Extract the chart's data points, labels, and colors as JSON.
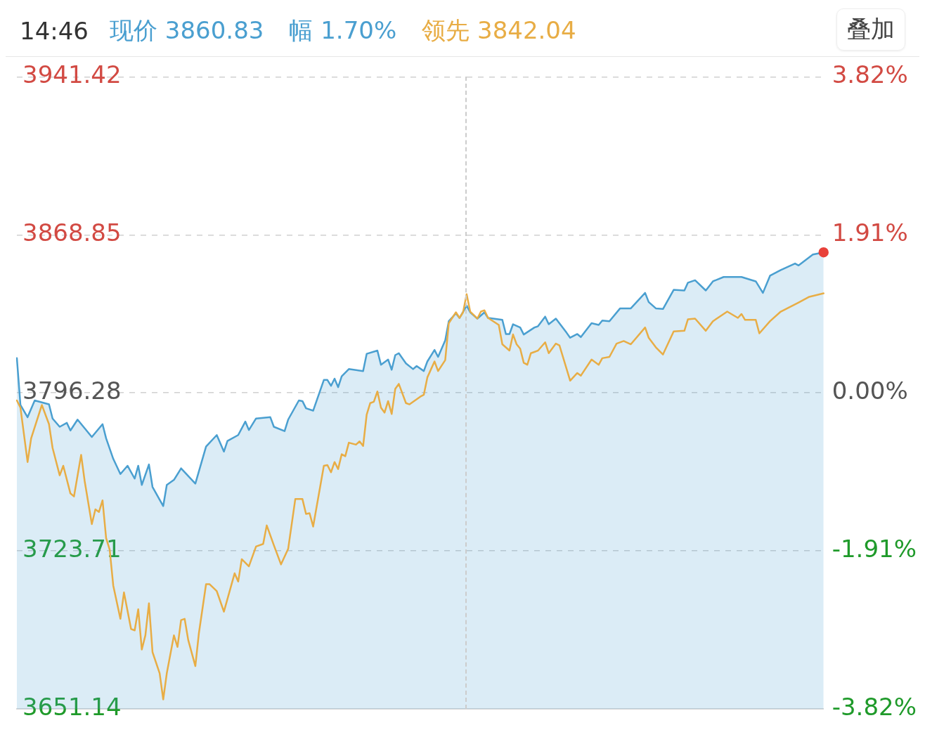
{
  "chart_data": {
    "type": "line",
    "title": "14:46",
    "annotations": [
      "现价 3860.83",
      "幅 1.70%",
      "领先 3842.04",
      "叠加"
    ],
    "categories": [
      null,
      null,
      null,
      null,
      null,
      null,
      null,
      null,
      null,
      null,
      null,
      null,
      null,
      null,
      null,
      null,
      null,
      null,
      null,
      null,
      null,
      null,
      null,
      null,
      null,
      null,
      null,
      null,
      null,
      null,
      null,
      null,
      null,
      null,
      null,
      null,
      null,
      null,
      null,
      null,
      null,
      null,
      null,
      null,
      null,
      null,
      null,
      null,
      null,
      null,
      null,
      null,
      null,
      null,
      null,
      null,
      null,
      null,
      null,
      null,
      null,
      null,
      null,
      null,
      null,
      null,
      null,
      null,
      null,
      null,
      null,
      null,
      null,
      null,
      null,
      null,
      null,
      null,
      null,
      null,
      null,
      null,
      null,
      null,
      null,
      null,
      null,
      null,
      null,
      null,
      null,
      null,
      null,
      null,
      null,
      null,
      null,
      null,
      null,
      null,
      null,
      null,
      null,
      null,
      null,
      null,
      null,
      null,
      null,
      null,
      null,
      null,
      null,
      null,
      null,
      null,
      null,
      null,
      null,
      null,
      null,
      null,
      null,
      null,
      null,
      null,
      null,
      null,
      null,
      null,
      null,
      null,
      null,
      null,
      null,
      null,
      null,
      null,
      null,
      null,
      null,
      null,
      null,
      null,
      null,
      null,
      null,
      null,
      null,
      null,
      null,
      null,
      null,
      null,
      null,
      null,
      null,
      null,
      null,
      null,
      null,
      null,
      null,
      null,
      null,
      null,
      null,
      null,
      null,
      null,
      null,
      null,
      null,
      null,
      null,
      null,
      null,
      null,
      null,
      null,
      null,
      null,
      null,
      null,
      null,
      null,
      null,
      null,
      null,
      null,
      null,
      null,
      null,
      null,
      null,
      null,
      null,
      null,
      null,
      null,
      null,
      null,
      null,
      null,
      null,
      null,
      null,
      null,
      null,
      null,
      null,
      null,
      null,
      null,
      null,
      null,
      null,
      null,
      null,
      null,
      null,
      null,
      null,
      null,
      null,
      null,
      null
    ],
    "ylim": [
      3651.14,
      3941.42
    ],
    "yticks": [
      3651.14,
      3723.71,
      3796.28,
      3868.85,
      3941.42
    ],
    "y2lim": [
      -3.82,
      3.82
    ],
    "y2ticks": [
      {
        "value": -3.82,
        "label": "-3.82%"
      },
      {
        "value": -1.91,
        "label": "-1.91%"
      },
      {
        "value": 0,
        "label": "0.00%"
      },
      {
        "value": 1.91,
        "label": "1.91%"
      },
      {
        "value": 3.82,
        "label": "3.82%"
      }
    ],
    "tick_labels": "y",
    "grid": "y",
    "marker": "none",
    "series": [
      {
        "type": "area",
        "color": "#4a9fd0",
        "values": [
          3812.2,
          3790.7,
          null,
          3785.1,
          null,
          3792.8,
          null,
          null,
          null,
          3791.0,
          3784.5,
          null,
          3780.7,
          null,
          3782.5,
          3779.0,
          null,
          3784.0,
          null,
          null,
          null,
          3776.0,
          null,
          null,
          3781.9,
          3775.4,
          null,
          3766.0,
          null,
          3759.0,
          null,
          3762.8,
          null,
          3756.9,
          3762.8,
          3754.0,
          null,
          3763.4,
          3753.1,
          null,
          null,
          3744.3,
          3754.0,
          null,
          3756.3,
          null,
          3761.6,
          null,
          null,
          null,
          3754.6,
          null,
          null,
          3771.6,
          null,
          null,
          3776.9,
          null,
          3769.3,
          3774.2,
          null,
          null,
          3776.9,
          null,
          3783.1,
          3779.2,
          null,
          3784.5,
          null,
          null,
          null,
          3785.1,
          3780.7,
          null,
          null,
          3778.7,
          3784.0,
          null,
          null,
          3792.8,
          3792.5,
          3789.2,
          null,
          3788.1,
          null,
          null,
          3802.2,
          3802.2,
          3799.5,
          3802.8,
          3798.9,
          3803.9,
          null,
          3807.2,
          null,
          null,
          null,
          3806.3,
          3814.2,
          null,
          null,
          3815.7,
          3809.2,
          null,
          3811.6,
          3806.9,
          3813.6,
          3814.5,
          null,
          3809.8,
          null,
          3807.2,
          3808.6,
          null,
          3806.3,
          3810.7,
          null,
          3816.0,
          3812.8,
          null,
          3820.4,
          3829.2,
          null,
          3832.8,
          3830.7,
          null,
          3836.3,
          3833.3,
          null,
          3830.4,
          null,
          3833.3,
          3830.7,
          null,
          null,
          null,
          3829.8,
          3823.3,
          3823.3,
          3827.8,
          null,
          3826.3,
          3823.1,
          null,
          null,
          3826.3,
          3826.9,
          null,
          3831.3,
          3827.8,
          null,
          3830.4,
          null,
          null,
          3823.9,
          3821.6,
          null,
          3823.3,
          3821.9,
          null,
          null,
          3828.3,
          null,
          3827.5,
          3829.5,
          null,
          3829.2,
          null,
          null,
          3835.1,
          null,
          null,
          3835.1,
          null,
          null,
          null,
          3842.2,
          3838.0,
          null,
          3835.1,
          null,
          3834.8,
          null,
          null,
          3843.6,
          null,
          null,
          3843.3,
          3846.9,
          null,
          3848.0,
          null,
          null,
          3843.3,
          null,
          3847.5,
          null,
          null,
          3849.5,
          null,
          null,
          null,
          null,
          3849.5,
          null,
          null,
          null,
          3847.5,
          null,
          3842.2,
          null,
          3850.1,
          null,
          null,
          3852.7,
          null,
          null,
          null,
          3855.7,
          3854.8,
          null,
          null,
          null,
          3859.8,
          null,
          null,
          3860.8
        ]
      },
      {
        "type": "line",
        "color": "#e8ad45",
        "values": [
          3792.8,
          3789.5,
          null,
          3764.5,
          3775.4,
          null,
          null,
          3790.7,
          null,
          3781.9,
          3771.0,
          null,
          3758.4,
          3762.8,
          null,
          3750.1,
          3748.7,
          null,
          3767.8,
          3755.7,
          null,
          3736.0,
          3742.8,
          3741.6,
          3746.9,
          3729.6,
          3724.3,
          3707.8,
          null,
          3692.5,
          3704.6,
          null,
          3687.8,
          3687.2,
          3696.9,
          3678.4,
          3684.9,
          3699.6,
          3677.2,
          null,
          3667.5,
          3655.5,
          3667.5,
          null,
          3684.9,
          3679.6,
          3691.9,
          3692.5,
          3682.8,
          null,
          3670.8,
          3686.0,
          null,
          3708.4,
          3708.4,
          null,
          3705.2,
          null,
          3695.8,
          null,
          null,
          3713.4,
          3709.6,
          3719.9,
          null,
          3716.6,
          null,
          3725.7,
          null,
          3726.9,
          3735.4,
          null,
          3726.3,
          null,
          3717.5,
          null,
          3724.6,
          null,
          3747.5,
          null,
          3747.5,
          3740.7,
          3741.0,
          3734.9,
          null,
          null,
          3762.8,
          3763.1,
          3759.8,
          3764.5,
          3761.3,
          3768.1,
          3767.2,
          3773.4,
          null,
          3772.5,
          3774.0,
          3771.9,
          3786.3,
          3791.6,
          3792.2,
          3796.9,
          3789.5,
          3787.2,
          3792.5,
          3786.6,
          3798.1,
          3800.4,
          null,
          3791.6,
          3791.0,
          null,
          null,
          3794.5,
          3795.4,
          3803.4,
          null,
          3810.7,
          3806.3,
          null,
          3811.3,
          3828.3,
          null,
          3833.3,
          3830.7,
          3833.3,
          3841.6,
          3833.6,
          null,
          3830.4,
          3833.6,
          3834.2,
          3830.7,
          null,
          null,
          3827.5,
          3818.6,
          null,
          3815.7,
          3823.1,
          3818.6,
          3816.6,
          3810.1,
          3809.2,
          3814.5,
          null,
          3815.7,
          null,
          3819.5,
          3814.5,
          null,
          3818.9,
          3818.1,
          null,
          null,
          3801.9,
          null,
          3805.4,
          3804.2,
          null,
          null,
          3811.6,
          null,
          3809.2,
          3812.2,
          null,
          3812.8,
          null,
          3818.9,
          null,
          3820.1,
          null,
          3818.6,
          null,
          null,
          null,
          3826.3,
          3821.6,
          null,
          3817.2,
          null,
          3813.9,
          null,
          null,
          3824.5,
          null,
          null,
          3824.8,
          3830.1,
          null,
          3830.4,
          null,
          null,
          3824.8,
          null,
          3829.2,
          null,
          null,
          null,
          3833.6,
          null,
          null,
          3830.7,
          3832.5,
          3829.8,
          null,
          null,
          3829.8,
          3823.6,
          null,
          null,
          3829.2,
          null,
          null,
          3833.6,
          null,
          null,
          null,
          null,
          3837.8,
          null,
          null,
          3840.4,
          null,
          null,
          null,
          3842.0
        ]
      },
      {
        "type": "scatter",
        "color": "#e8413a",
        "marker": "circle",
        "values": [
          null,
          null,
          null,
          null,
          null,
          null,
          null,
          null,
          null,
          null,
          null,
          null,
          null,
          null,
          null,
          null,
          null,
          null,
          null,
          null,
          null,
          null,
          null,
          null,
          null,
          null,
          null,
          null,
          null,
          null,
          null,
          null,
          null,
          null,
          null,
          null,
          null,
          null,
          null,
          null,
          null,
          null,
          null,
          null,
          null,
          null,
          null,
          null,
          null,
          null,
          null,
          null,
          null,
          null,
          null,
          null,
          null,
          null,
          null,
          null,
          null,
          null,
          null,
          null,
          null,
          null,
          null,
          null,
          null,
          null,
          null,
          null,
          null,
          null,
          null,
          null,
          null,
          null,
          null,
          null,
          null,
          null,
          null,
          null,
          null,
          null,
          null,
          null,
          null,
          null,
          null,
          null,
          null,
          null,
          null,
          null,
          null,
          null,
          null,
          null,
          null,
          null,
          null,
          null,
          null,
          null,
          null,
          null,
          null,
          null,
          null,
          null,
          null,
          null,
          null,
          null,
          null,
          null,
          null,
          null,
          null,
          null,
          null,
          null,
          null,
          null,
          null,
          null,
          null,
          null,
          null,
          null,
          null,
          null,
          null,
          null,
          null,
          null,
          null,
          null,
          null,
          null,
          null,
          null,
          null,
          null,
          null,
          null,
          null,
          null,
          null,
          null,
          null,
          null,
          null,
          null,
          null,
          null,
          null,
          null,
          null,
          null,
          null,
          null,
          null,
          null,
          null,
          null,
          null,
          null,
          null,
          null,
          null,
          null,
          null,
          null,
          null,
          null,
          null,
          null,
          null,
          null,
          null,
          null,
          null,
          null,
          null,
          null,
          null,
          null,
          null,
          null,
          null,
          null,
          null,
          null,
          null,
          null,
          null,
          null,
          null,
          null,
          null,
          null,
          null,
          null,
          null,
          null,
          null,
          null,
          null,
          null,
          null,
          null,
          null,
          null,
          null,
          null,
          null,
          null,
          null,
          null,
          null,
          null,
          null,
          null,
          3860.8
        ]
      }
    ]
  }
}
